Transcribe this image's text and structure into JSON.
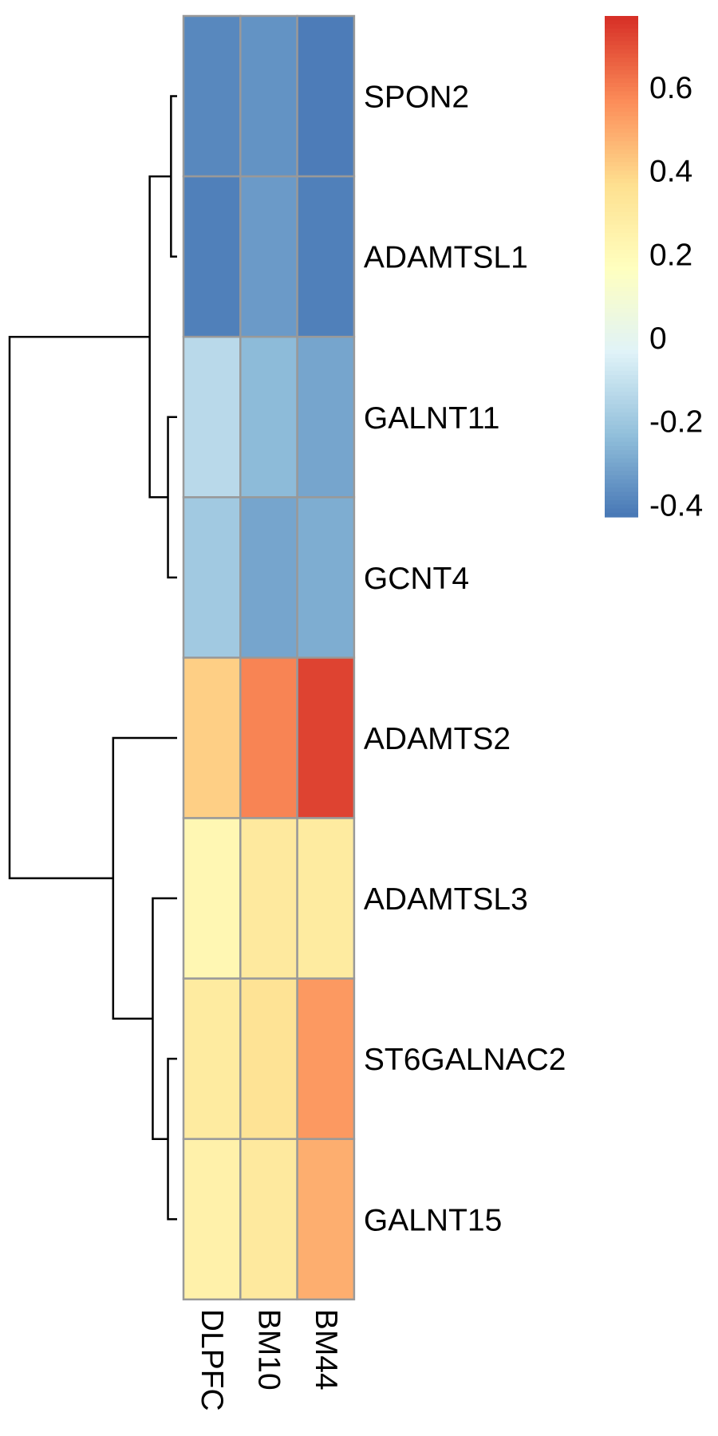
{
  "chart_data": {
    "type": "heatmap",
    "title": "",
    "xlabel": "",
    "ylabel": "",
    "columns": [
      "DLPFC",
      "BM10",
      "BM44"
    ],
    "rows": [
      "SPON2",
      "ADAMTSL1",
      "GALNT11",
      "GCNT4",
      "ADAMTS2",
      "ADAMTSL3",
      "ST6GALNAC2",
      "GALNT15"
    ],
    "values": [
      [
        -0.38,
        -0.35,
        -0.41
      ],
      [
        -0.4,
        -0.33,
        -0.4
      ],
      [
        -0.13,
        -0.24,
        -0.3
      ],
      [
        -0.19,
        -0.3,
        -0.28
      ],
      [
        0.41,
        0.59,
        0.73
      ],
      [
        0.22,
        0.31,
        0.3
      ],
      [
        0.3,
        0.35,
        0.54
      ],
      [
        0.26,
        0.31,
        0.49
      ]
    ],
    "color_scale": {
      "min": -0.43,
      "max": 0.77,
      "ticks": [
        -0.4,
        -0.2,
        0,
        0.2,
        0.4,
        0.6
      ],
      "tick_labels": [
        "-0.4",
        "-0.2",
        "0",
        "0.2",
        "0.4",
        "0.6"
      ],
      "palette": [
        "#4575b4",
        "#91bfdb",
        "#e0f3f8",
        "#ffffbf",
        "#fee090",
        "#fc8d59",
        "#d73027"
      ]
    },
    "row_dendrogram": {
      "merges": [
        [
          -1,
          -2
        ],
        [
          -3,
          -4
        ],
        [
          -7,
          -8
        ],
        [
          -6,
          3
        ],
        [
          1,
          2
        ],
        [
          -5,
          4
        ],
        [
          5,
          6
        ]
      ],
      "heights": [
        0.02,
        0.03,
        0.03,
        0.08,
        0.09,
        0.21,
        0.55
      ]
    },
    "grid": true,
    "legend": "right"
  }
}
